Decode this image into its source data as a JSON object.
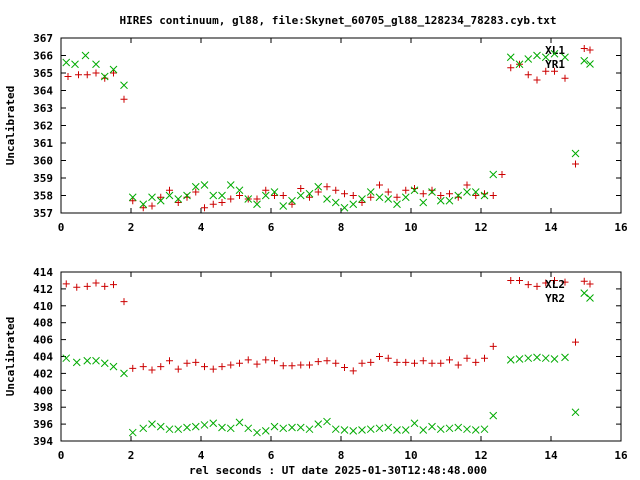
{
  "chart_data": {
    "title": "HIRES continuum, gl88, file:Skynet_60705_gl88_128234_78283.cyb.txt",
    "xlabel": "rel seconds : UT date 2025-01-30T12:48:48.000",
    "panels": [
      {
        "type": "scatter",
        "ylabel": "Uncalibrated",
        "xlim": [
          0,
          16
        ],
        "ylim": [
          357,
          367
        ],
        "xticks": [
          "0",
          "2",
          "4",
          "6",
          "8",
          "10",
          "12",
          "14",
          "16"
        ],
        "yticks": [
          "357",
          "358",
          "359",
          "360",
          "361",
          "362",
          "363",
          "364",
          "365",
          "366",
          "367"
        ],
        "series": [
          {
            "name": "XL1",
            "marker": "plus",
            "color": "#cc0000",
            "points": [
              [
                0.2,
                364.8
              ],
              [
                0.5,
                364.9
              ],
              [
                0.75,
                364.9
              ],
              [
                1.0,
                365.0
              ],
              [
                1.25,
                364.7
              ],
              [
                1.5,
                365.0
              ],
              [
                1.8,
                363.5
              ],
              [
                2.05,
                357.7
              ],
              [
                2.35,
                357.3
              ],
              [
                2.6,
                357.4
              ],
              [
                2.85,
                357.9
              ],
              [
                3.1,
                358.3
              ],
              [
                3.35,
                357.6
              ],
              [
                3.6,
                357.9
              ],
              [
                3.85,
                358.2
              ],
              [
                4.1,
                357.3
              ],
              [
                4.35,
                357.5
              ],
              [
                4.6,
                357.6
              ],
              [
                4.85,
                357.8
              ],
              [
                5.1,
                358.0
              ],
              [
                5.35,
                357.8
              ],
              [
                5.6,
                357.8
              ],
              [
                5.85,
                358.3
              ],
              [
                6.1,
                358.0
              ],
              [
                6.35,
                358.0
              ],
              [
                6.6,
                357.5
              ],
              [
                6.85,
                358.4
              ],
              [
                7.1,
                357.9
              ],
              [
                7.35,
                358.2
              ],
              [
                7.6,
                358.5
              ],
              [
                7.85,
                358.3
              ],
              [
                8.1,
                358.1
              ],
              [
                8.35,
                358.0
              ],
              [
                8.6,
                357.6
              ],
              [
                8.85,
                357.9
              ],
              [
                9.1,
                358.6
              ],
              [
                9.35,
                358.2
              ],
              [
                9.6,
                357.9
              ],
              [
                9.85,
                358.3
              ],
              [
                10.1,
                358.4
              ],
              [
                10.35,
                358.1
              ],
              [
                10.6,
                358.3
              ],
              [
                10.85,
                358.0
              ],
              [
                11.1,
                358.1
              ],
              [
                11.35,
                357.9
              ],
              [
                11.6,
                358.6
              ],
              [
                11.85,
                358.0
              ],
              [
                12.1,
                358.1
              ],
              [
                12.35,
                358.0
              ],
              [
                12.6,
                359.2
              ],
              [
                12.85,
                365.3
              ],
              [
                13.1,
                365.5
              ],
              [
                13.35,
                364.9
              ],
              [
                13.6,
                364.6
              ],
              [
                13.85,
                365.1
              ],
              [
                14.1,
                365.1
              ],
              [
                14.4,
                364.7
              ],
              [
                14.7,
                359.8
              ],
              [
                14.95,
                366.4
              ]
            ]
          },
          {
            "name": "YR1",
            "marker": "cross",
            "color": "#00aa00",
            "points": [
              [
                0.15,
                365.6
              ],
              [
                0.4,
                365.5
              ],
              [
                0.7,
                366.0
              ],
              [
                1.0,
                365.5
              ],
              [
                1.25,
                364.8
              ],
              [
                1.5,
                365.2
              ],
              [
                1.8,
                364.3
              ],
              [
                2.05,
                357.9
              ],
              [
                2.35,
                357.5
              ],
              [
                2.6,
                357.9
              ],
              [
                2.85,
                357.7
              ],
              [
                3.1,
                358.0
              ],
              [
                3.35,
                357.8
              ],
              [
                3.6,
                358.0
              ],
              [
                3.85,
                358.5
              ],
              [
                4.1,
                358.6
              ],
              [
                4.35,
                358.0
              ],
              [
                4.6,
                358.0
              ],
              [
                4.85,
                358.6
              ],
              [
                5.1,
                358.3
              ],
              [
                5.35,
                357.8
              ],
              [
                5.6,
                357.5
              ],
              [
                5.85,
                358.0
              ],
              [
                6.1,
                358.2
              ],
              [
                6.35,
                357.4
              ],
              [
                6.6,
                357.7
              ],
              [
                6.85,
                358.0
              ],
              [
                7.1,
                358.1
              ],
              [
                7.35,
                358.5
              ],
              [
                7.6,
                357.8
              ],
              [
                7.85,
                357.6
              ],
              [
                8.1,
                357.3
              ],
              [
                8.35,
                357.5
              ],
              [
                8.6,
                357.8
              ],
              [
                8.85,
                358.2
              ],
              [
                9.1,
                357.9
              ],
              [
                9.35,
                357.8
              ],
              [
                9.6,
                357.5
              ],
              [
                9.85,
                357.9
              ],
              [
                10.1,
                358.3
              ],
              [
                10.35,
                357.6
              ],
              [
                10.6,
                358.2
              ],
              [
                10.85,
                357.7
              ],
              [
                11.1,
                357.7
              ],
              [
                11.35,
                358.0
              ],
              [
                11.6,
                358.2
              ],
              [
                11.85,
                358.2
              ],
              [
                12.1,
                358.0
              ],
              [
                12.35,
                359.2
              ],
              [
                12.85,
                365.9
              ],
              [
                13.1,
                365.5
              ],
              [
                13.35,
                365.8
              ],
              [
                13.6,
                366.0
              ],
              [
                13.85,
                365.9
              ],
              [
                14.1,
                366.1
              ],
              [
                14.4,
                365.9
              ],
              [
                14.7,
                360.4
              ],
              [
                14.95,
                365.7
              ]
            ]
          }
        ]
      },
      {
        "type": "scatter",
        "ylabel": "Uncalibrated",
        "xlim": [
          0,
          16
        ],
        "ylim": [
          394,
          414
        ],
        "xticks": [
          "0",
          "2",
          "4",
          "6",
          "8",
          "10",
          "12",
          "14",
          "16"
        ],
        "yticks": [
          "394",
          "396",
          "398",
          "400",
          "402",
          "404",
          "406",
          "408",
          "410",
          "412",
          "414"
        ],
        "series": [
          {
            "name": "XL2",
            "marker": "plus",
            "color": "#cc0000",
            "points": [
              [
                0.15,
                412.6
              ],
              [
                0.45,
                412.2
              ],
              [
                0.75,
                412.3
              ],
              [
                1.0,
                412.7
              ],
              [
                1.25,
                412.3
              ],
              [
                1.5,
                412.5
              ],
              [
                1.8,
                410.5
              ],
              [
                2.05,
                402.6
              ],
              [
                2.35,
                402.8
              ],
              [
                2.6,
                402.4
              ],
              [
                2.85,
                402.8
              ],
              [
                3.1,
                403.5
              ],
              [
                3.35,
                402.5
              ],
              [
                3.6,
                403.2
              ],
              [
                3.85,
                403.3
              ],
              [
                4.1,
                402.8
              ],
              [
                4.35,
                402.5
              ],
              [
                4.6,
                402.8
              ],
              [
                4.85,
                403.0
              ],
              [
                5.1,
                403.2
              ],
              [
                5.35,
                403.6
              ],
              [
                5.6,
                403.1
              ],
              [
                5.85,
                403.6
              ],
              [
                6.1,
                403.5
              ],
              [
                6.35,
                402.9
              ],
              [
                6.6,
                402.9
              ],
              [
                6.85,
                403.0
              ],
              [
                7.1,
                403.0
              ],
              [
                7.35,
                403.4
              ],
              [
                7.6,
                403.5
              ],
              [
                7.85,
                403.2
              ],
              [
                8.1,
                402.7
              ],
              [
                8.35,
                402.3
              ],
              [
                8.6,
                403.2
              ],
              [
                8.85,
                403.3
              ],
              [
                9.1,
                404.0
              ],
              [
                9.35,
                403.8
              ],
              [
                9.6,
                403.3
              ],
              [
                9.85,
                403.3
              ],
              [
                10.1,
                403.2
              ],
              [
                10.35,
                403.5
              ],
              [
                10.6,
                403.2
              ],
              [
                10.85,
                403.2
              ],
              [
                11.1,
                403.6
              ],
              [
                11.35,
                403.0
              ],
              [
                11.6,
                403.8
              ],
              [
                11.85,
                403.3
              ],
              [
                12.1,
                403.8
              ],
              [
                12.35,
                405.2
              ],
              [
                12.85,
                413.0
              ],
              [
                13.1,
                413.0
              ],
              [
                13.35,
                412.5
              ],
              [
                13.6,
                412.3
              ],
              [
                13.85,
                412.7
              ],
              [
                14.1,
                413.0
              ],
              [
                14.4,
                412.8
              ],
              [
                14.7,
                405.7
              ],
              [
                14.95,
                412.9
              ]
            ]
          },
          {
            "name": "YR2",
            "marker": "cross",
            "color": "#00aa00",
            "points": [
              [
                0.15,
                403.8
              ],
              [
                0.45,
                403.3
              ],
              [
                0.75,
                403.5
              ],
              [
                1.0,
                403.5
              ],
              [
                1.25,
                403.2
              ],
              [
                1.5,
                402.8
              ],
              [
                1.8,
                402.0
              ],
              [
                2.05,
                395.0
              ],
              [
                2.35,
                395.5
              ],
              [
                2.6,
                396.0
              ],
              [
                2.85,
                395.7
              ],
              [
                3.1,
                395.4
              ],
              [
                3.35,
                395.4
              ],
              [
                3.6,
                395.6
              ],
              [
                3.85,
                395.7
              ],
              [
                4.1,
                395.9
              ],
              [
                4.35,
                396.1
              ],
              [
                4.6,
                395.6
              ],
              [
                4.85,
                395.5
              ],
              [
                5.1,
                396.2
              ],
              [
                5.35,
                395.5
              ],
              [
                5.6,
                395.0
              ],
              [
                5.85,
                395.2
              ],
              [
                6.1,
                395.7
              ],
              [
                6.35,
                395.5
              ],
              [
                6.6,
                395.6
              ],
              [
                6.85,
                395.6
              ],
              [
                7.1,
                395.4
              ],
              [
                7.35,
                396.0
              ],
              [
                7.6,
                396.3
              ],
              [
                7.85,
                395.4
              ],
              [
                8.1,
                395.3
              ],
              [
                8.35,
                395.2
              ],
              [
                8.6,
                395.3
              ],
              [
                8.85,
                395.4
              ],
              [
                9.1,
                395.5
              ],
              [
                9.35,
                395.6
              ],
              [
                9.6,
                395.3
              ],
              [
                9.85,
                395.3
              ],
              [
                10.1,
                396.1
              ],
              [
                10.35,
                395.3
              ],
              [
                10.6,
                395.7
              ],
              [
                10.85,
                395.4
              ],
              [
                11.1,
                395.5
              ],
              [
                11.35,
                395.6
              ],
              [
                11.6,
                395.4
              ],
              [
                11.85,
                395.3
              ],
              [
                12.1,
                395.4
              ],
              [
                12.35,
                397.0
              ],
              [
                12.85,
                403.6
              ],
              [
                13.1,
                403.7
              ],
              [
                13.35,
                403.8
              ],
              [
                13.6,
                403.9
              ],
              [
                13.85,
                403.8
              ],
              [
                14.1,
                403.7
              ],
              [
                14.4,
                403.9
              ],
              [
                14.7,
                397.4
              ],
              [
                14.95,
                411.5
              ]
            ]
          }
        ]
      }
    ]
  }
}
